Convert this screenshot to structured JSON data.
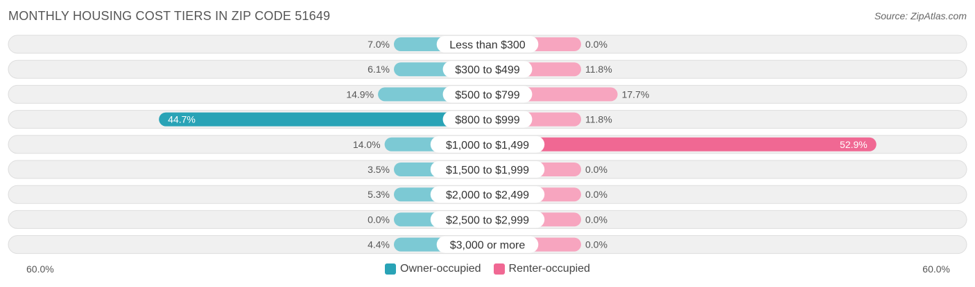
{
  "header": {
    "title": "MONTHLY HOUSING COST TIERS IN ZIP CODE 51649",
    "source": "Source: ZipAtlas.com"
  },
  "colors": {
    "owner_dark": "#29a3b6",
    "owner_light": "#7cc9d4",
    "renter_dark": "#f06893",
    "renter_light": "#f7a5bf",
    "row_bg": "#f0f0f0",
    "row_border": "#dddddd"
  },
  "axis": {
    "left_label": "60.0%",
    "right_label": "60.0%"
  },
  "legend": {
    "owner_label": "Owner-occupied",
    "renter_label": "Renter-occupied"
  },
  "chart_data": {
    "type": "bar",
    "orientation": "horizontal-diverging",
    "xlim": [
      -60,
      60
    ],
    "categories": [
      "Less than $300",
      "$300 to $499",
      "$500 to $799",
      "$800 to $999",
      "$1,000 to $1,499",
      "$1,500 to $1,999",
      "$2,000 to $2,499",
      "$2,500 to $2,999",
      "$3,000 or more"
    ],
    "series": [
      {
        "name": "Owner-occupied",
        "values": [
          7.0,
          6.1,
          14.9,
          44.7,
          14.0,
          3.5,
          5.3,
          0.0,
          4.4
        ]
      },
      {
        "name": "Renter-occupied",
        "values": [
          0.0,
          11.8,
          17.7,
          11.8,
          52.9,
          0.0,
          0.0,
          0.0,
          0.0
        ]
      }
    ],
    "value_labels": {
      "owner": [
        "7.0%",
        "6.1%",
        "14.9%",
        "44.7%",
        "14.0%",
        "3.5%",
        "5.3%",
        "0.0%",
        "4.4%"
      ],
      "renter": [
        "0.0%",
        "11.8%",
        "17.7%",
        "11.8%",
        "52.9%",
        "0.0%",
        "0.0%",
        "0.0%",
        "0.0%"
      ]
    }
  }
}
